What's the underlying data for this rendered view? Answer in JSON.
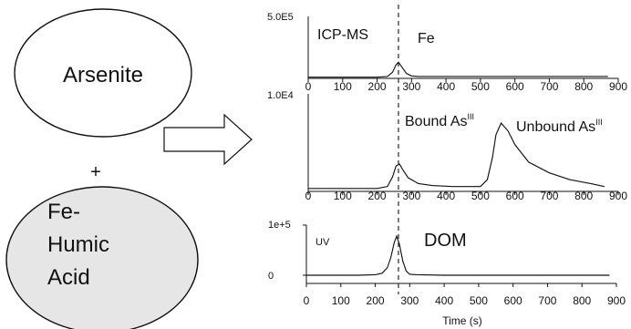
{
  "left": {
    "top_reagent": "Arsenite",
    "plus": "+",
    "bottom_reagent_lines": [
      "Fe-",
      "Humic",
      "Acid"
    ]
  },
  "colors": {
    "ink": "#111111",
    "bottom_fill": "#e6e6e6"
  },
  "chart_data": [
    {
      "type": "line",
      "name": "panel-fe",
      "panel_label": "ICP-MS",
      "peak_label": "Fe",
      "ymax_label": "5.0E5",
      "xlim": [
        0,
        900
      ],
      "x_ticks": [
        0,
        100,
        200,
        300,
        400,
        500,
        600,
        700,
        800,
        900
      ],
      "x": [
        0,
        200,
        230,
        245,
        255,
        262,
        270,
        285,
        300,
        320,
        400,
        870
      ],
      "y": [
        0.02,
        0.02,
        0.03,
        0.1,
        0.22,
        0.26,
        0.2,
        0.08,
        0.04,
        0.03,
        0.03,
        0.03
      ]
    },
    {
      "type": "line",
      "name": "panel-as",
      "peak_label": "Bound As",
      "peak_label_sup": "III",
      "peak2_label": "Unbound As",
      "peak2_label_sup": "III",
      "ymax_label": "1.0E4",
      "xlim": [
        0,
        900
      ],
      "x_ticks": [
        0,
        100,
        200,
        300,
        400,
        500,
        600,
        700,
        800,
        900
      ],
      "x": [
        0,
        200,
        230,
        245,
        255,
        265,
        275,
        290,
        320,
        360,
        420,
        500,
        520,
        535,
        545,
        560,
        580,
        600,
        640,
        700,
        760,
        820,
        860
      ],
      "y": [
        0.03,
        0.03,
        0.05,
        0.15,
        0.26,
        0.28,
        0.22,
        0.14,
        0.08,
        0.06,
        0.05,
        0.05,
        0.12,
        0.35,
        0.58,
        0.7,
        0.62,
        0.48,
        0.3,
        0.19,
        0.12,
        0.08,
        0.05
      ]
    },
    {
      "type": "line",
      "name": "panel-dom",
      "panel_label": "UV",
      "peak_label": "DOM",
      "y_ticks": [
        "1e+5",
        "0"
      ],
      "xlim": [
        0,
        900
      ],
      "x_ticks": [
        0,
        100,
        200,
        300,
        400,
        500,
        600,
        700,
        800,
        900
      ],
      "xlabel": "Time (s)",
      "x": [
        0,
        150,
        200,
        220,
        235,
        245,
        255,
        262,
        270,
        280,
        290,
        300,
        320,
        400,
        880
      ],
      "y": [
        0,
        0,
        0.01,
        0.04,
        0.15,
        0.35,
        0.65,
        0.78,
        0.62,
        0.28,
        0.08,
        0.02,
        0.01,
        0,
        0
      ]
    }
  ],
  "marker_time": 262
}
